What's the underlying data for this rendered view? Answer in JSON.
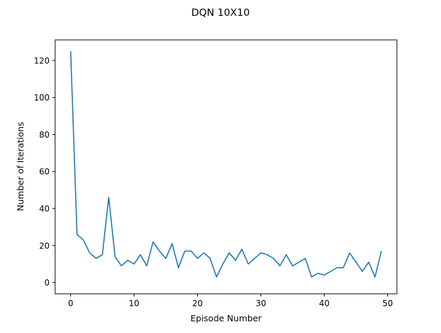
{
  "chart_data": {
    "type": "line",
    "title": "DQN 10X10",
    "xlabel": "Episode Number",
    "ylabel": "Number of Iterations",
    "xlim": [
      -2.45,
      51.45
    ],
    "ylim": [
      -6.1,
      131.1
    ],
    "xticks": [
      0,
      10,
      20,
      30,
      40,
      50
    ],
    "yticks": [
      0,
      20,
      40,
      60,
      80,
      100,
      120
    ],
    "grid": false,
    "line_color": "#1f77b4",
    "x": [
      0,
      1,
      2,
      3,
      4,
      5,
      6,
      7,
      8,
      9,
      10,
      11,
      12,
      13,
      14,
      15,
      16,
      17,
      18,
      19,
      20,
      21,
      22,
      23,
      24,
      25,
      26,
      27,
      28,
      29,
      30,
      31,
      32,
      33,
      34,
      35,
      36,
      37,
      38,
      39,
      40,
      41,
      42,
      43,
      44,
      45,
      46,
      47,
      48,
      49
    ],
    "y": [
      125,
      26,
      23,
      16,
      13,
      15,
      46,
      14,
      9,
      12,
      10,
      15,
      9,
      22,
      17,
      13,
      21,
      8,
      17,
      17,
      13,
      16,
      13,
      3,
      10,
      16,
      12,
      18,
      10,
      13,
      16,
      15,
      13,
      9,
      15,
      9,
      11,
      13,
      3,
      5,
      4,
      6,
      8,
      8,
      16,
      11,
      6,
      11,
      3,
      17
    ]
  }
}
